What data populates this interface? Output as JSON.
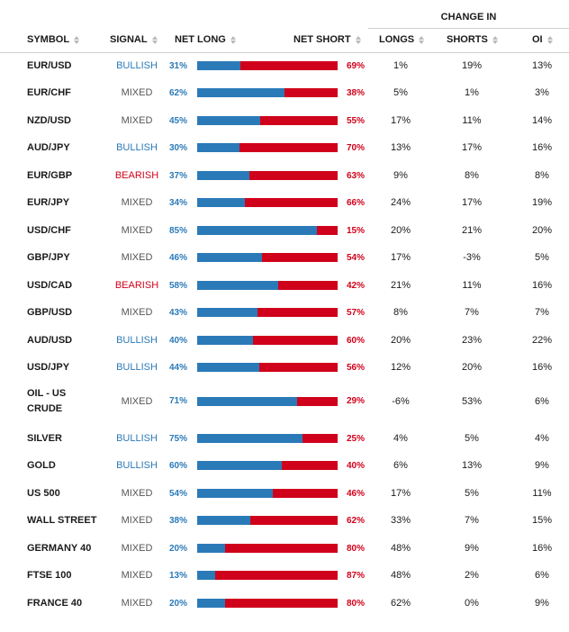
{
  "header": {
    "change_in": "CHANGE IN",
    "symbol": "SYMBOL",
    "signal": "SIGNAL",
    "net_long": "NET LONG",
    "net_short": "NET SHORT",
    "longs": "LONGS",
    "shorts": "SHORTS",
    "oi": "OI"
  },
  "colors": {
    "long": "#2b7ab8",
    "short": "#d0021b",
    "mixed": "#555555"
  },
  "rows": [
    {
      "symbol": "EUR/USD",
      "signal": "BULLISH",
      "kind": "bullish",
      "net_long": "31%",
      "long_frac": 0.31,
      "net_short": "69%",
      "longs": "1%",
      "shorts": "19%",
      "oi": "13%"
    },
    {
      "symbol": "EUR/CHF",
      "signal": "MIXED",
      "kind": "mixed",
      "net_long": "62%",
      "long_frac": 0.62,
      "net_short": "38%",
      "longs": "5%",
      "shorts": "1%",
      "oi": "3%"
    },
    {
      "symbol": "NZD/USD",
      "signal": "MIXED",
      "kind": "mixed",
      "net_long": "45%",
      "long_frac": 0.45,
      "net_short": "55%",
      "longs": "17%",
      "shorts": "11%",
      "oi": "14%"
    },
    {
      "symbol": "AUD/JPY",
      "signal": "BULLISH",
      "kind": "bullish",
      "net_long": "30%",
      "long_frac": 0.3,
      "net_short": "70%",
      "longs": "13%",
      "shorts": "17%",
      "oi": "16%"
    },
    {
      "symbol": "EUR/GBP",
      "signal": "BEARISH",
      "kind": "bearish",
      "net_long": "37%",
      "long_frac": 0.37,
      "net_short": "63%",
      "longs": "9%",
      "shorts": "8%",
      "oi": "8%"
    },
    {
      "symbol": "EUR/JPY",
      "signal": "MIXED",
      "kind": "mixed",
      "net_long": "34%",
      "long_frac": 0.34,
      "net_short": "66%",
      "longs": "24%",
      "shorts": "17%",
      "oi": "19%"
    },
    {
      "symbol": "USD/CHF",
      "signal": "MIXED",
      "kind": "mixed",
      "net_long": "85%",
      "long_frac": 0.85,
      "net_short": "15%",
      "longs": "20%",
      "shorts": "21%",
      "oi": "20%"
    },
    {
      "symbol": "GBP/JPY",
      "signal": "MIXED",
      "kind": "mixed",
      "net_long": "46%",
      "long_frac": 0.46,
      "net_short": "54%",
      "longs": "17%",
      "shorts": "-3%",
      "oi": "5%"
    },
    {
      "symbol": "USD/CAD",
      "signal": "BEARISH",
      "kind": "bearish",
      "net_long": "58%",
      "long_frac": 0.58,
      "net_short": "42%",
      "longs": "21%",
      "shorts": "11%",
      "oi": "16%"
    },
    {
      "symbol": "GBP/USD",
      "signal": "MIXED",
      "kind": "mixed",
      "net_long": "43%",
      "long_frac": 0.43,
      "net_short": "57%",
      "longs": "8%",
      "shorts": "7%",
      "oi": "7%"
    },
    {
      "symbol": "AUD/USD",
      "signal": "BULLISH",
      "kind": "bullish",
      "net_long": "40%",
      "long_frac": 0.4,
      "net_short": "60%",
      "longs": "20%",
      "shorts": "23%",
      "oi": "22%"
    },
    {
      "symbol": "USD/JPY",
      "signal": "BULLISH",
      "kind": "bullish",
      "net_long": "44%",
      "long_frac": 0.44,
      "net_short": "56%",
      "longs": "12%",
      "shorts": "20%",
      "oi": "16%"
    },
    {
      "symbol": "OIL - US CRUDE",
      "signal": "MIXED",
      "kind": "mixed",
      "net_long": "71%",
      "long_frac": 0.71,
      "net_short": "29%",
      "longs": "-6%",
      "shorts": "53%",
      "oi": "6%"
    },
    {
      "symbol": "SILVER",
      "signal": "BULLISH",
      "kind": "bullish",
      "net_long": "75%",
      "long_frac": 0.75,
      "net_short": "25%",
      "longs": "4%",
      "shorts": "5%",
      "oi": "4%"
    },
    {
      "symbol": "GOLD",
      "signal": "BULLISH",
      "kind": "bullish",
      "net_long": "60%",
      "long_frac": 0.6,
      "net_short": "40%",
      "longs": "6%",
      "shorts": "13%",
      "oi": "9%"
    },
    {
      "symbol": "US 500",
      "signal": "MIXED",
      "kind": "mixed",
      "net_long": "54%",
      "long_frac": 0.54,
      "net_short": "46%",
      "longs": "17%",
      "shorts": "5%",
      "oi": "11%"
    },
    {
      "symbol": "WALL STREET",
      "signal": "MIXED",
      "kind": "mixed",
      "net_long": "38%",
      "long_frac": 0.38,
      "net_short": "62%",
      "longs": "33%",
      "shorts": "7%",
      "oi": "15%"
    },
    {
      "symbol": "GERMANY 40",
      "signal": "MIXED",
      "kind": "mixed",
      "net_long": "20%",
      "long_frac": 0.2,
      "net_short": "80%",
      "longs": "48%",
      "shorts": "9%",
      "oi": "16%"
    },
    {
      "symbol": "FTSE 100",
      "signal": "MIXED",
      "kind": "mixed",
      "net_long": "13%",
      "long_frac": 0.13,
      "net_short": "87%",
      "longs": "48%",
      "shorts": "2%",
      "oi": "6%"
    },
    {
      "symbol": "FRANCE 40",
      "signal": "MIXED",
      "kind": "mixed",
      "net_long": "20%",
      "long_frac": 0.2,
      "net_short": "80%",
      "longs": "62%",
      "shorts": "0%",
      "oi": "9%"
    }
  ]
}
